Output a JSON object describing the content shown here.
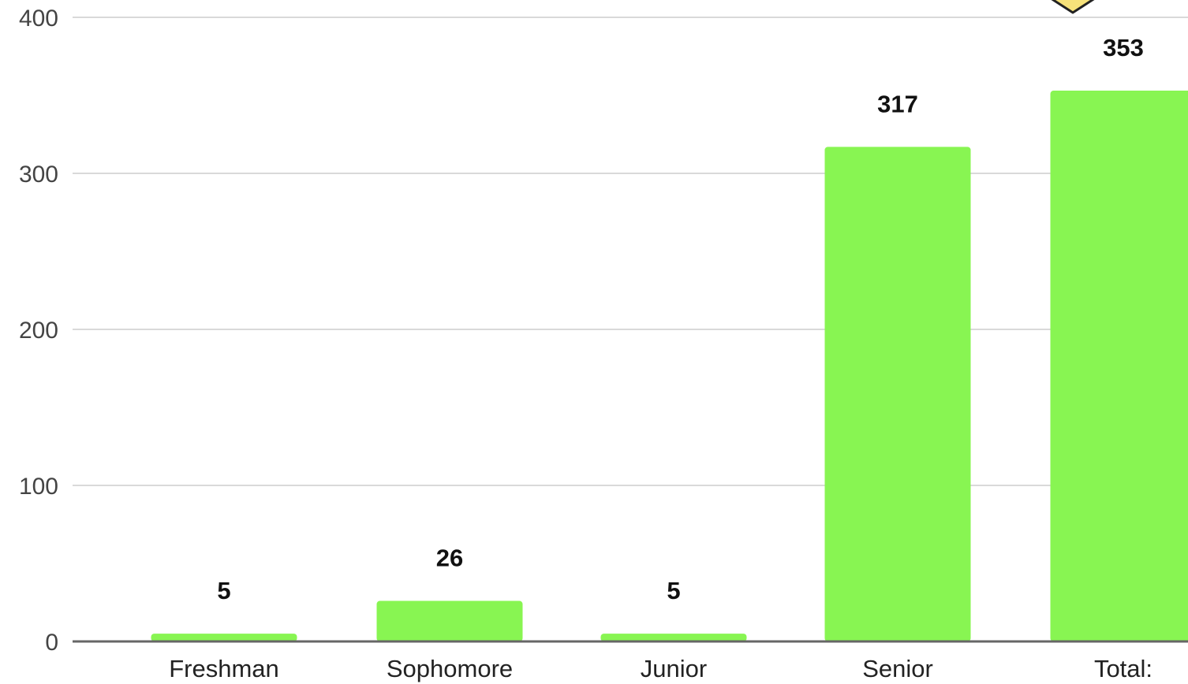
{
  "chart_data": {
    "type": "bar",
    "categories": [
      "Freshman",
      "Sophomore",
      "Junior",
      "Senior",
      "Total:"
    ],
    "values": [
      5,
      26,
      5,
      317,
      353
    ],
    "data_labels": [
      "5",
      "26",
      "5",
      "317",
      "353"
    ],
    "ylim": [
      0,
      400
    ],
    "yticks": [
      0,
      100,
      200,
      300,
      400
    ],
    "ytick_labels": [
      "0",
      "100",
      "200",
      "300",
      "400"
    ],
    "grid": true,
    "bar_color": "#88f552",
    "marker_color": "#f7e27a"
  }
}
